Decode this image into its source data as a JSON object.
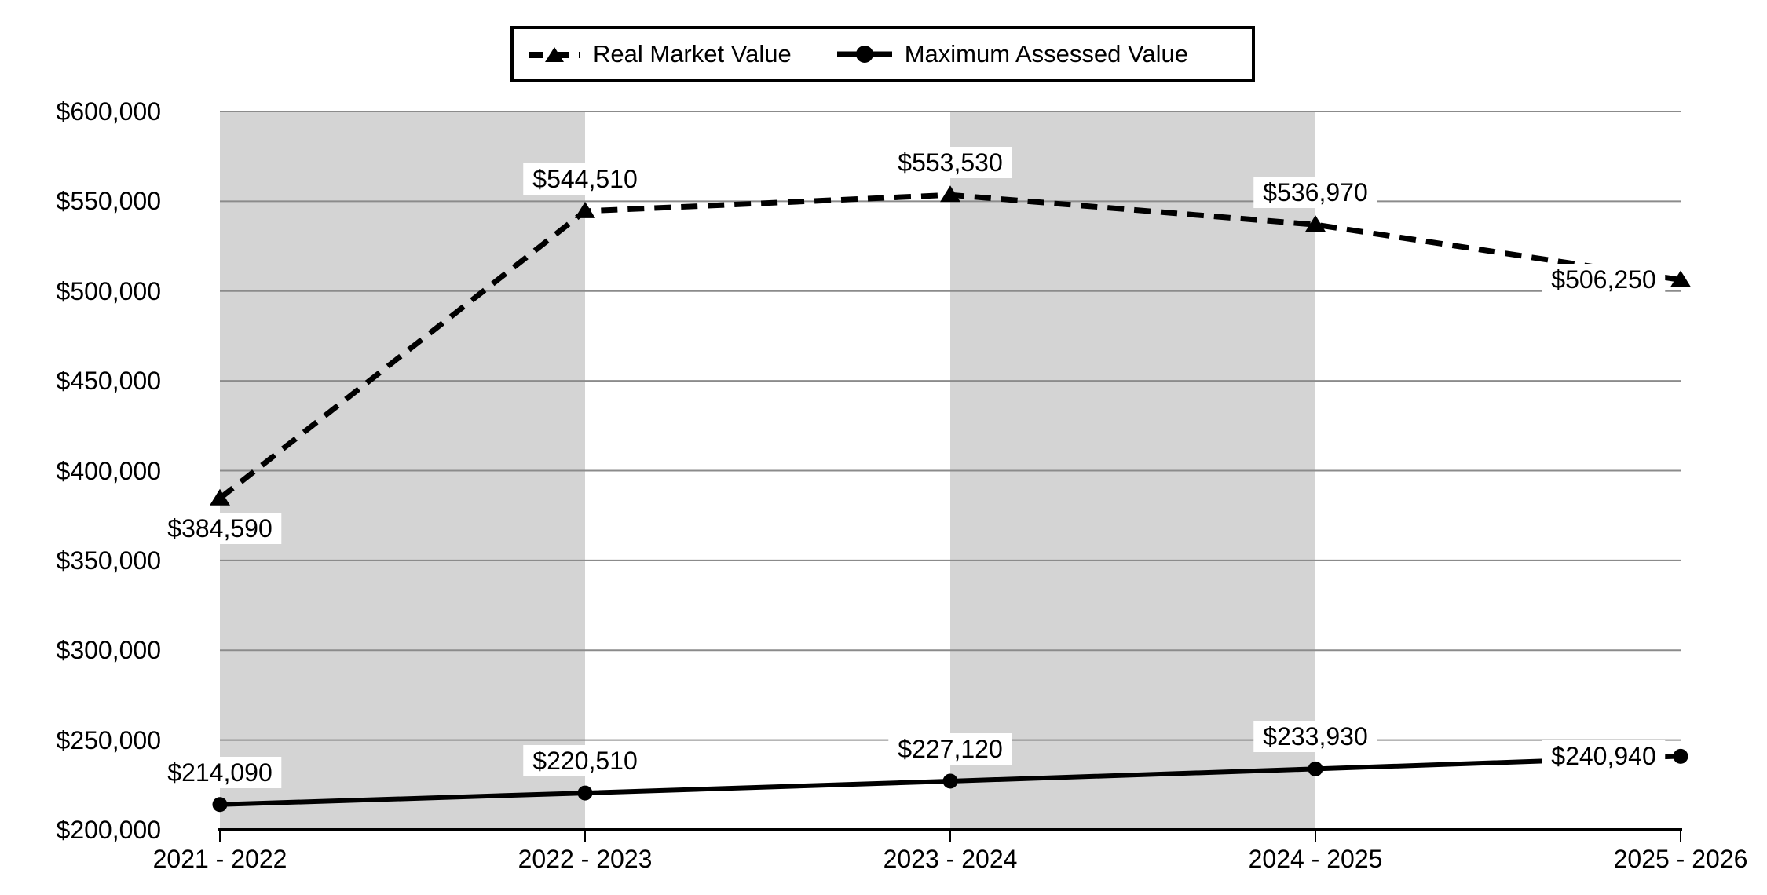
{
  "legend": {
    "items": [
      {
        "label": "Real Market Value",
        "marker": "dashed-line-with-triangle"
      },
      {
        "label": "Maximum Assessed Value",
        "marker": "solid-line-with-circle"
      }
    ]
  },
  "chart_data": {
    "type": "line",
    "title": "",
    "xlabel": "",
    "ylabel": "",
    "categories": [
      "2021 - 2022",
      "2022 - 2023",
      "2023 - 2024",
      "2024 - 2025",
      "2025 - 2026"
    ],
    "series": [
      {
        "name": "Real Market Value",
        "line_style": "dashed",
        "marker": "triangle",
        "color": "#000000",
        "values": [
          384590,
          544510,
          553530,
          536970,
          506250
        ],
        "labels": [
          "$384,590",
          "$544,510",
          "$553,530",
          "$536,970",
          "$506,250"
        ],
        "label_positions": [
          "below",
          "above",
          "above",
          "above",
          "left"
        ]
      },
      {
        "name": "Maximum Assessed Value",
        "line_style": "solid",
        "marker": "circle",
        "color": "#000000",
        "values": [
          214090,
          220510,
          227120,
          233930,
          240940
        ],
        "labels": [
          "$214,090",
          "$220,510",
          "$227,120",
          "$233,930",
          "$240,940"
        ],
        "label_positions": [
          "above",
          "above",
          "above",
          "above",
          "left"
        ]
      }
    ],
    "ylim": [
      200000,
      600000
    ],
    "ytick_step": 50000,
    "ytick_labels_bottom_to_top": [
      "$200,000",
      "$250,000",
      "$300,000",
      "$350,000",
      "$400,000",
      "$450,000",
      "$500,000",
      "$550,000",
      "$600,000"
    ],
    "grid": true,
    "legend_position": "top-center",
    "shaded_column_bands": [
      [
        0,
        1
      ],
      [
        2,
        3
      ]
    ],
    "band_color": "#d4d4d4",
    "gridline_color": "#8b8b8b",
    "axis_color": "#000000"
  }
}
